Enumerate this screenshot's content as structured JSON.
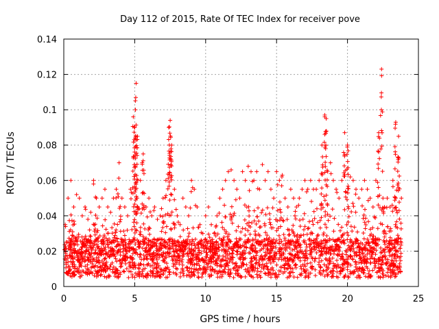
{
  "chart_data": {
    "type": "scatter",
    "title": "Day 112 of 2015, Rate Of TEC Index for receiver pove",
    "xlabel": "GPS time / hours",
    "ylabel": "ROTI / TECUs",
    "xlim": [
      0,
      25
    ],
    "ylim": [
      0,
      0.14
    ],
    "x_ticks": [
      "0",
      "5",
      "10",
      "15",
      "20",
      "25"
    ],
    "y_ticks": [
      "0",
      "0.02",
      "0.04",
      "0.06",
      "0.08",
      "0.1",
      "0.12",
      "0.14"
    ],
    "grid": true,
    "marker": "plus",
    "color": "#ff0000",
    "series": [
      {
        "points_description_note_free": true,
        "x": [
          0.1,
          0.3,
          0.5,
          0.7,
          0.9,
          1.1,
          1.3,
          1.5,
          1.7,
          1.9,
          2.1,
          2.3,
          2.5,
          2.7,
          2.9,
          3.1,
          3.3,
          3.5,
          3.7,
          3.9,
          4.1,
          4.3,
          4.5,
          4.7,
          4.9,
          5.0,
          5.05,
          5.1,
          5.2,
          5.4,
          5.6,
          5.8,
          6.0,
          6.2,
          6.4,
          6.6,
          6.8,
          7.0,
          7.2,
          7.4,
          7.5,
          7.6,
          7.8,
          8.0,
          8.2,
          8.4,
          8.6,
          8.8,
          9.0,
          9.2,
          9.4,
          9.6,
          9.8,
          10.0,
          10.2,
          10.4,
          10.6,
          10.8,
          11.0,
          11.2,
          11.4,
          11.6,
          11.8,
          12.0,
          12.2,
          12.4,
          12.6,
          12.8,
          13.0,
          13.2,
          13.4,
          13.6,
          13.8,
          14.0,
          14.2,
          14.4,
          14.6,
          14.8,
          15.0,
          15.2,
          15.4,
          15.6,
          15.8,
          16.0,
          16.2,
          16.4,
          16.6,
          16.8,
          17.0,
          17.2,
          17.4,
          17.6,
          17.8,
          18.0,
          18.2,
          18.4,
          18.5,
          18.6,
          18.8,
          19.0,
          19.2,
          19.4,
          19.6,
          19.8,
          20.0,
          20.2,
          20.4,
          20.6,
          20.8,
          21.0,
          21.2,
          21.4,
          21.6,
          21.8,
          22.0,
          22.2,
          22.4,
          22.5,
          22.6,
          22.8,
          23.0,
          23.2,
          23.4,
          23.6,
          23.8
        ],
        "y": [
          0.035,
          0.05,
          0.06,
          0.045,
          0.052,
          0.05,
          0.04,
          0.045,
          0.038,
          0.042,
          0.06,
          0.05,
          0.045,
          0.05,
          0.055,
          0.045,
          0.042,
          0.05,
          0.055,
          0.07,
          0.05,
          0.045,
          0.04,
          0.055,
          0.096,
          0.09,
          0.1,
          0.115,
          0.085,
          0.06,
          0.075,
          0.045,
          0.05,
          0.04,
          0.045,
          0.038,
          0.04,
          0.05,
          0.06,
          0.09,
          0.094,
          0.08,
          0.055,
          0.04,
          0.035,
          0.05,
          0.045,
          0.04,
          0.06,
          0.055,
          0.045,
          0.035,
          0.03,
          0.04,
          0.045,
          0.035,
          0.03,
          0.04,
          0.05,
          0.055,
          0.06,
          0.065,
          0.066,
          0.06,
          0.055,
          0.05,
          0.065,
          0.06,
          0.068,
          0.065,
          0.06,
          0.065,
          0.055,
          0.069,
          0.06,
          0.065,
          0.055,
          0.05,
          0.065,
          0.06,
          0.063,
          0.05,
          0.045,
          0.055,
          0.05,
          0.045,
          0.05,
          0.055,
          0.06,
          0.055,
          0.06,
          0.055,
          0.055,
          0.06,
          0.08,
          0.097,
          0.095,
          0.065,
          0.07,
          0.06,
          0.055,
          0.05,
          0.06,
          0.087,
          0.08,
          0.062,
          0.06,
          0.055,
          0.05,
          0.055,
          0.06,
          0.055,
          0.05,
          0.045,
          0.06,
          0.087,
          0.123,
          0.05,
          0.045,
          0.05,
          0.045,
          0.06,
          0.093,
          0.085,
          0.05
        ]
      }
    ]
  }
}
